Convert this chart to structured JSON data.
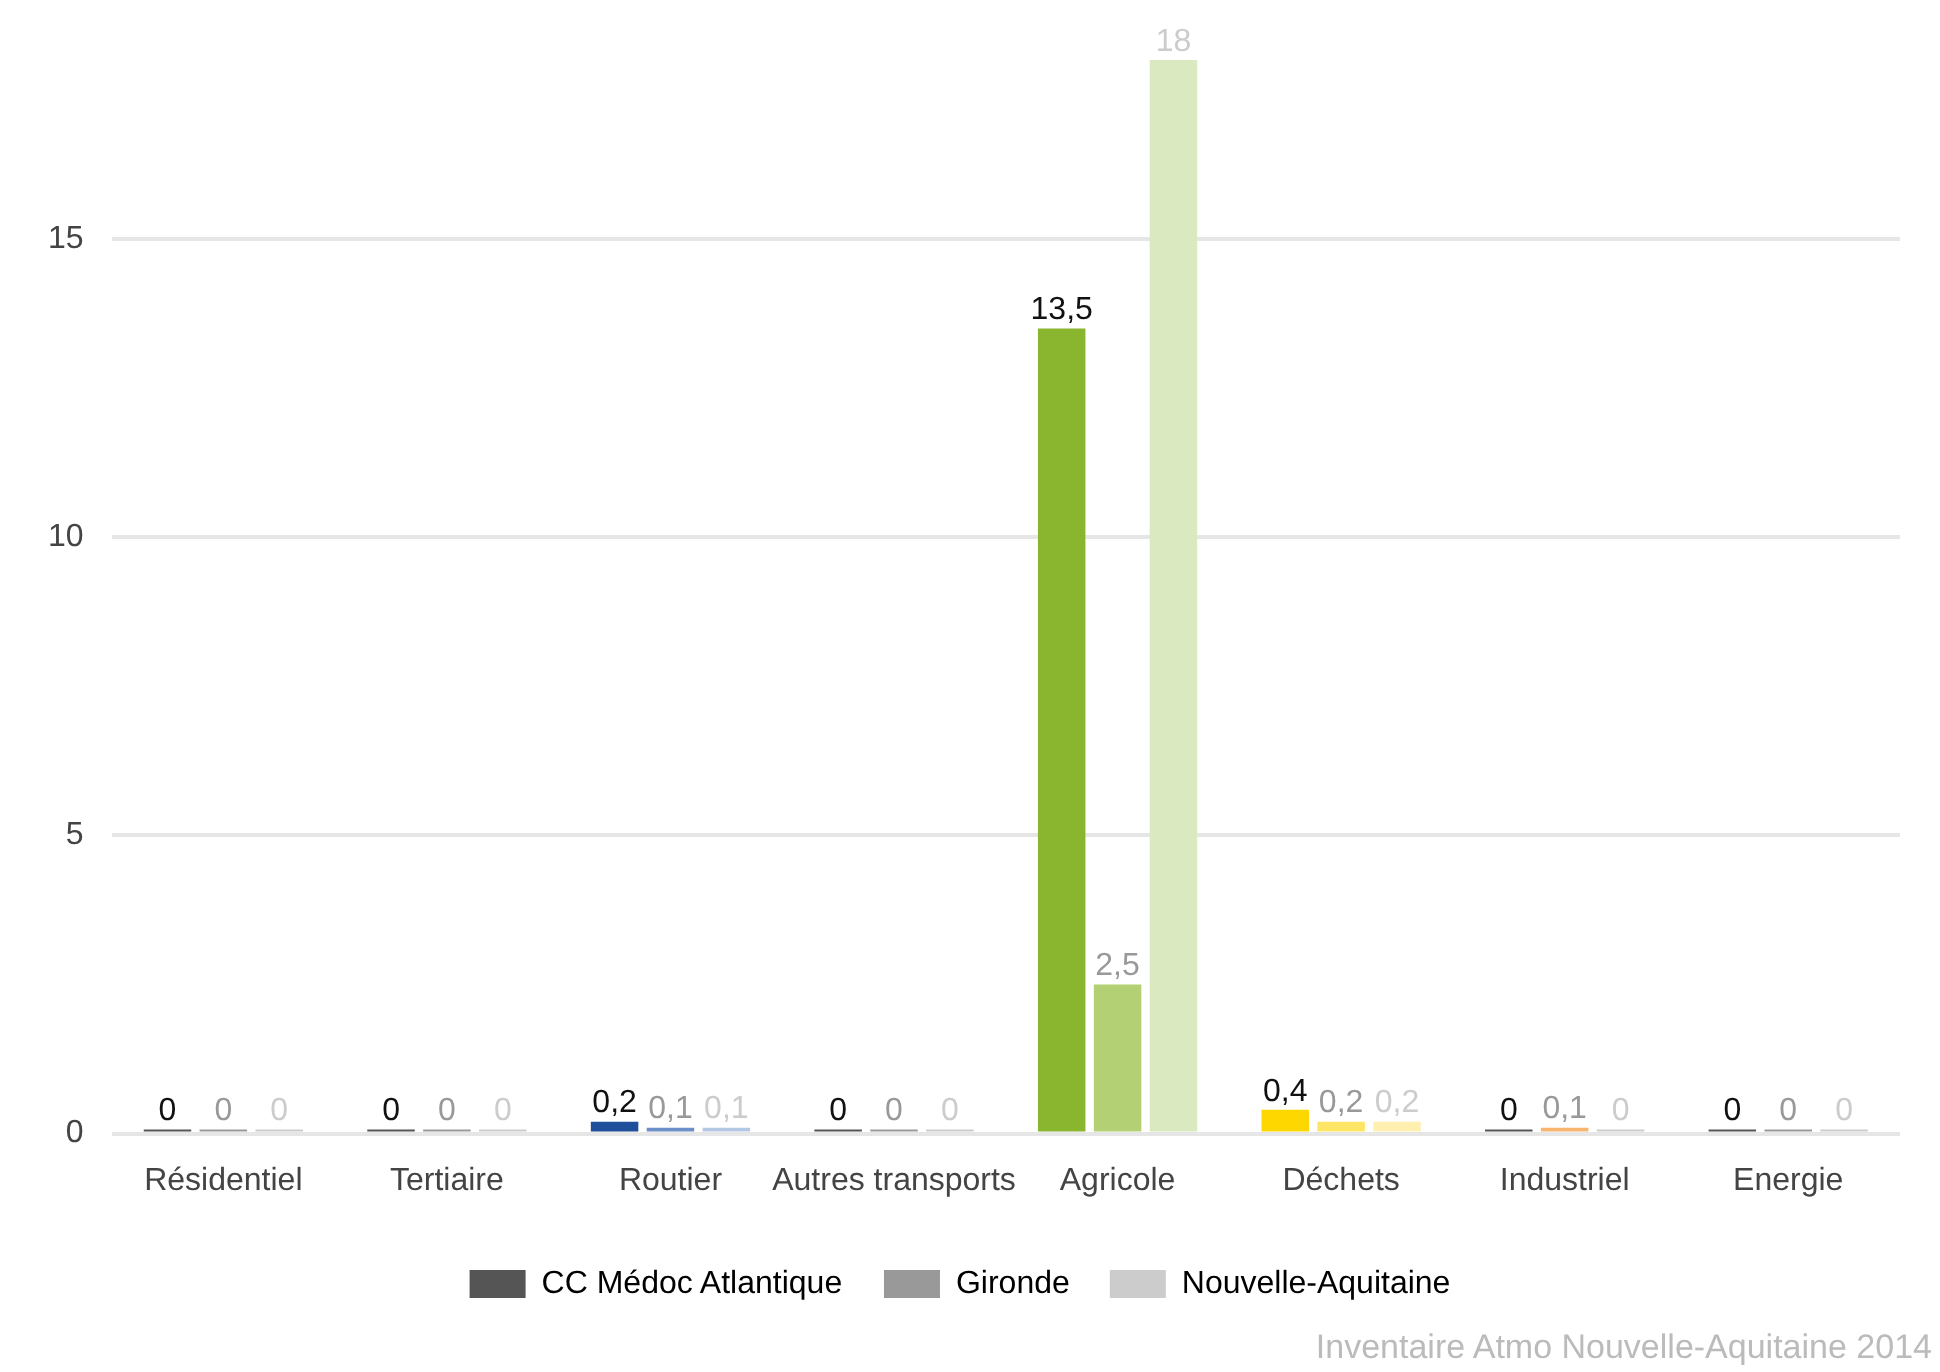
{
  "chart_data": {
    "type": "bar",
    "categories": [
      "Résidentiel",
      "Tertiaire",
      "Routier",
      "Autres transports",
      "Agricole",
      "Déchets",
      "Industriel",
      "Energie"
    ],
    "series": [
      {
        "name": "CC Médoc Atlantique",
        "color": "#555555",
        "values": [
          0,
          0,
          0.2,
          0,
          13.5,
          0.4,
          0,
          0
        ],
        "value_labels": [
          "0",
          "0",
          "0,2",
          "0",
          "13,5",
          "0,4",
          "0",
          "0"
        ],
        "colors": [
          "#555555",
          "#555555",
          "#1f4e9a",
          "#555555",
          "#8ab62f",
          "#ffd700",
          "#555555",
          "#555555"
        ]
      },
      {
        "name": "Gironde",
        "color": "#999999",
        "values": [
          0,
          0,
          0.1,
          0,
          2.5,
          0.2,
          0.1,
          0
        ],
        "value_labels": [
          "0",
          "0",
          "0,1",
          "0",
          "2,5",
          "0,2",
          "0,1",
          "0"
        ],
        "colors": [
          "#999999",
          "#999999",
          "#6b8fc7",
          "#999999",
          "#b3d074",
          "#ffe566",
          "#f7b56f",
          "#999999"
        ]
      },
      {
        "name": "Nouvelle-Aquitaine",
        "color": "#cccccc",
        "values": [
          0,
          0,
          0.1,
          0,
          18,
          0.2,
          0,
          0
        ],
        "value_labels": [
          "0",
          "0",
          "0,1",
          "0",
          "18",
          "0,2",
          "0",
          "0"
        ],
        "colors": [
          "#cccccc",
          "#cccccc",
          "#b5c8e3",
          "#cccccc",
          "#dbe9c0",
          "#fff0b0",
          "#cccccc",
          "#cccccc"
        ]
      }
    ],
    "ylim": [
      0,
      18
    ],
    "yticks": [
      0,
      5,
      10,
      15
    ],
    "grid": "y",
    "legend": "bottom",
    "annotations": [
      "Inventaire Atmo Nouvelle-Aquitaine 2014"
    ]
  }
}
